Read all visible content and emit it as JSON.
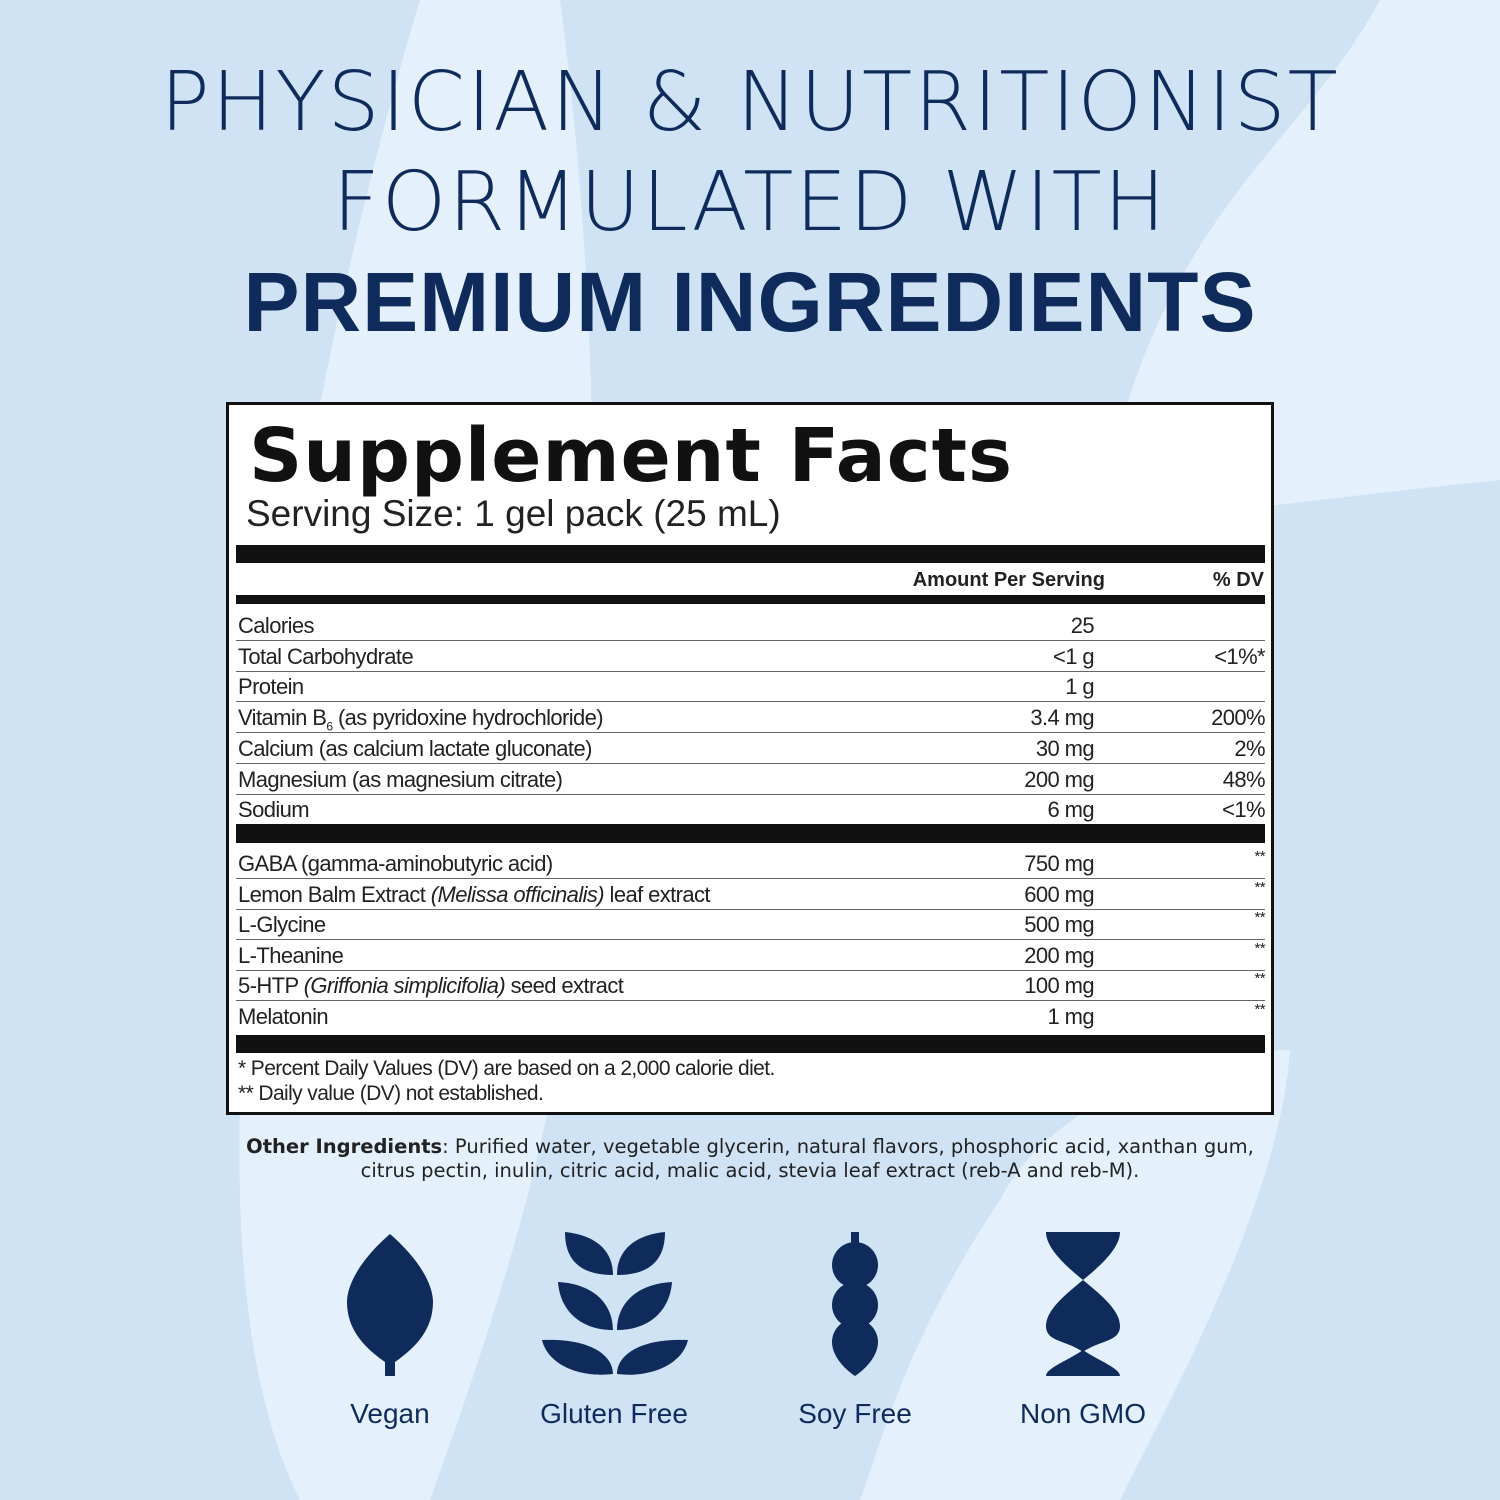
{
  "headline": {
    "line1": "PHYSICIAN & NUTRITIONIST",
    "line2": "FORMULATED WITH",
    "line3": "PREMIUM INGREDIENTS"
  },
  "colors": {
    "navy": "#0f2b5b",
    "background": "#e4f1fc",
    "swoosh": "#cfe3f4"
  },
  "facts": {
    "title": "Supplement Facts",
    "serving_size": "Serving Size: 1 gel pack (25 mL)",
    "col_amount": "Amount Per Serving",
    "col_dv": "% DV",
    "nutrients": [
      {
        "name": "Calories",
        "amount": "25",
        "dv": ""
      },
      {
        "name": "Total Carbohydrate",
        "amount": "<1 g",
        "dv": "<1%*"
      },
      {
        "name": "Protein",
        "amount": "1 g",
        "dv": ""
      },
      {
        "name": "Vitamin B",
        "sub": "6",
        "name_rest": " (as pyridoxine hydrochloride)",
        "amount": "3.4 mg",
        "dv": "200%"
      },
      {
        "name": "Calcium (as calcium lactate gluconate)",
        "amount": "30 mg",
        "dv": "2%"
      },
      {
        "name": "Magnesium (as magnesium citrate)",
        "amount": "200 mg",
        "dv": "48%"
      },
      {
        "name": "Sodium",
        "amount": "6 mg",
        "dv": "<1%"
      }
    ],
    "others": [
      {
        "name": "GABA (gamma-aminobutyric acid)",
        "amount": "750 mg",
        "dv": "**"
      },
      {
        "name": "Lemon Balm Extract ",
        "italic": "(Melissa officinalis)",
        "name_rest": " leaf extract",
        "amount": "600 mg",
        "dv": "**"
      },
      {
        "name": "L-Glycine",
        "amount": "500 mg",
        "dv": "**"
      },
      {
        "name": "L-Theanine",
        "amount": "200 mg",
        "dv": "**"
      },
      {
        "name": "5-HTP ",
        "italic": "(Griffonia simplicifolia)",
        "name_rest": " seed extract",
        "amount": "100 mg",
        "dv": "**"
      },
      {
        "name": "Melatonin",
        "amount": "1 mg",
        "dv": "**"
      }
    ],
    "footnote1": "* Percent Daily Values (DV) are based on a 2,000 calorie diet.",
    "footnote2": "** Daily value (DV) not established."
  },
  "other_ingredients": {
    "label": "Other Ingredients",
    "line1": ": Purified water, vegetable glycerin, natural flavors, phosphoric acid, xanthan gum,",
    "line2": "citrus pectin, inulin, citric acid, malic acid, stevia leaf extract (reb-A and reb-M)."
  },
  "badges": [
    {
      "icon": "leaf-icon",
      "label": "Vegan"
    },
    {
      "icon": "wheat-icon",
      "label": "Gluten Free"
    },
    {
      "icon": "soybean-icon",
      "label": "Soy Free"
    },
    {
      "icon": "dna-icon",
      "label": "Non GMO"
    }
  ]
}
